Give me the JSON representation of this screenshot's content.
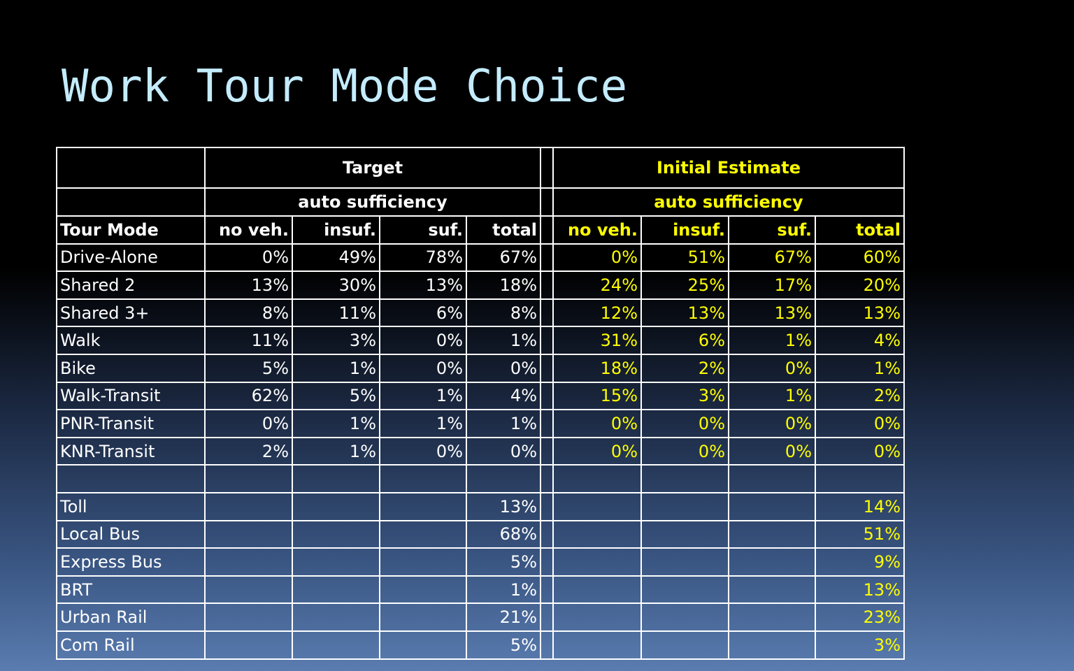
{
  "slide": {
    "title": "Work Tour Mode Choice"
  },
  "table": {
    "group_headers": {
      "target": "Target",
      "initial": "Initial Estimate"
    },
    "sub_headers": {
      "target": "auto sufficiency",
      "initial": "auto sufficiency"
    },
    "columns": [
      "Tour Mode",
      "no veh.",
      "insuf.",
      "suf.",
      "total",
      "no veh.",
      "insuf.",
      "suf.",
      "total"
    ],
    "rows": [
      {
        "mode": "Drive-Alone",
        "target": [
          "0%",
          "49%",
          "78%",
          "67%"
        ],
        "initial": [
          "0%",
          "51%",
          "67%",
          "60%"
        ]
      },
      {
        "mode": "Shared 2",
        "target": [
          "13%",
          "30%",
          "13%",
          "18%"
        ],
        "initial": [
          "24%",
          "25%",
          "17%",
          "20%"
        ]
      },
      {
        "mode": "Shared 3+",
        "target": [
          "8%",
          "11%",
          "6%",
          "8%"
        ],
        "initial": [
          "12%",
          "13%",
          "13%",
          "13%"
        ]
      },
      {
        "mode": "Walk",
        "target": [
          "11%",
          "3%",
          "0%",
          "1%"
        ],
        "initial": [
          "31%",
          "6%",
          "1%",
          "4%"
        ]
      },
      {
        "mode": "Bike",
        "target": [
          "5%",
          "1%",
          "0%",
          "0%"
        ],
        "initial": [
          "18%",
          "2%",
          "0%",
          "1%"
        ]
      },
      {
        "mode": "Walk-Transit",
        "target": [
          "62%",
          "5%",
          "1%",
          "4%"
        ],
        "initial": [
          "15%",
          "3%",
          "1%",
          "2%"
        ]
      },
      {
        "mode": "PNR-Transit",
        "target": [
          "0%",
          "1%",
          "1%",
          "1%"
        ],
        "initial": [
          "0%",
          "0%",
          "0%",
          "0%"
        ]
      },
      {
        "mode": "KNR-Transit",
        "target": [
          "2%",
          "1%",
          "0%",
          "0%"
        ],
        "initial": [
          "0%",
          "0%",
          "0%",
          "0%"
        ]
      },
      {
        "mode": "",
        "target": [
          "",
          "",
          "",
          ""
        ],
        "initial": [
          "",
          "",
          "",
          ""
        ]
      },
      {
        "mode": "Toll",
        "target": [
          "",
          "",
          "",
          "13%"
        ],
        "initial": [
          "",
          "",
          "",
          "14%"
        ]
      },
      {
        "mode": "Local Bus",
        "target": [
          "",
          "",
          "",
          "68%"
        ],
        "initial": [
          "",
          "",
          "",
          "51%"
        ]
      },
      {
        "mode": "Express Bus",
        "target": [
          "",
          "",
          "",
          "5%"
        ],
        "initial": [
          "",
          "",
          "",
          "9%"
        ]
      },
      {
        "mode": "BRT",
        "target": [
          "",
          "",
          "",
          "1%"
        ],
        "initial": [
          "",
          "",
          "",
          "13%"
        ]
      },
      {
        "mode": "Urban Rail",
        "target": [
          "",
          "",
          "",
          "21%"
        ],
        "initial": [
          "",
          "",
          "",
          "23%"
        ]
      },
      {
        "mode": "Com Rail",
        "target": [
          "",
          "",
          "",
          "5%"
        ],
        "initial": [
          "",
          "",
          "",
          "3%"
        ]
      }
    ]
  },
  "colors": {
    "title": "#c4ecff",
    "target_text": "#ffffff",
    "initial_text": "#ffff00",
    "grid_lines": "#ffffff"
  }
}
